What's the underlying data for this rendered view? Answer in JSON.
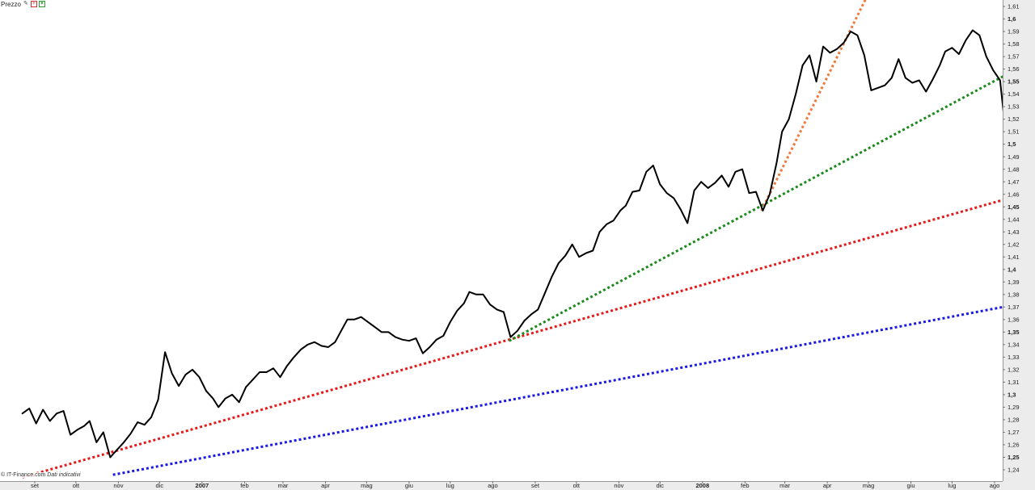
{
  "toolbar": {
    "label": "Prezzo",
    "icons": [
      "pen-icon",
      "plus-icon",
      "arrow-down-icon"
    ]
  },
  "credit": {
    "source": "© IT-Finance.com",
    "note": "Dati indicativi"
  },
  "colors": {
    "price": "#000000",
    "trend_blue": "#1a1ae6",
    "trend_red": "#e61a1a",
    "trend_green": "#1a8a1a",
    "trend_orange": "#f07a3a",
    "axis_bg": "#ececec"
  },
  "chart_data": {
    "type": "line",
    "title": "",
    "xlabel": "",
    "ylabel": "",
    "x_range": [
      "2006-09-01",
      "2008-08-12"
    ],
    "ylim": [
      1.236,
      1.612
    ],
    "y_ticks": [
      "1,24",
      "1,25",
      "1,26",
      "1,27",
      "1,28",
      "1,29",
      "1,3",
      "1,31",
      "1,32",
      "1,33",
      "1,34",
      "1,35",
      "1,36",
      "1,37",
      "1,38",
      "1,39",
      "1,4",
      "1,41",
      "1,42",
      "1,43",
      "1,44",
      "1,45",
      "1,46",
      "1,47",
      "1,48",
      "1,49",
      "1,5",
      "1,51",
      "1,52",
      "1,53",
      "1,54",
      "1,55",
      "1,56",
      "1,57",
      "1,58",
      "1,59",
      "1,6",
      "1,61"
    ],
    "y_ticks_bold": [
      "1,25",
      "1,3",
      "1,35",
      "1,4",
      "1,45",
      "1,5",
      "1,55",
      "1,6"
    ],
    "x_ticks": [
      {
        "date": "2006-09-01",
        "label": "set"
      },
      {
        "date": "2006-10-01",
        "label": "ott"
      },
      {
        "date": "2006-11-01",
        "label": "nov"
      },
      {
        "date": "2006-12-01",
        "label": "dic"
      },
      {
        "date": "2007-01-01",
        "label": "2007",
        "bold": true
      },
      {
        "date": "2007-02-01",
        "label": "feb"
      },
      {
        "date": "2007-03-01",
        "label": "mar"
      },
      {
        "date": "2007-04-01",
        "label": "apr"
      },
      {
        "date": "2007-05-01",
        "label": "mag"
      },
      {
        "date": "2007-06-01",
        "label": "giu"
      },
      {
        "date": "2007-07-01",
        "label": "lug"
      },
      {
        "date": "2007-08-01",
        "label": "ago"
      },
      {
        "date": "2007-09-01",
        "label": "set"
      },
      {
        "date": "2007-10-01",
        "label": "ott"
      },
      {
        "date": "2007-11-01",
        "label": "nov"
      },
      {
        "date": "2007-12-01",
        "label": "dic"
      },
      {
        "date": "2008-01-01",
        "label": "2008",
        "bold": true
      },
      {
        "date": "2008-02-01",
        "label": "feb"
      },
      {
        "date": "2008-03-01",
        "label": "mar"
      },
      {
        "date": "2008-04-01",
        "label": "apr"
      },
      {
        "date": "2008-05-01",
        "label": "mag"
      },
      {
        "date": "2008-06-01",
        "label": "giu"
      },
      {
        "date": "2008-07-01",
        "label": "lug"
      },
      {
        "date": "2008-08-01",
        "label": "ago"
      }
    ],
    "series": [
      {
        "points": [
          [
            "2006-08-23",
            1.285
          ],
          [
            "2006-08-28",
            1.289
          ],
          [
            "2006-09-02",
            1.277
          ],
          [
            "2006-09-07",
            1.288
          ],
          [
            "2006-09-12",
            1.279
          ],
          [
            "2006-09-17",
            1.285
          ],
          [
            "2006-09-22",
            1.287
          ],
          [
            "2006-09-27",
            1.268
          ],
          [
            "2006-10-02",
            1.272
          ],
          [
            "2006-10-07",
            1.275
          ],
          [
            "2006-10-11",
            1.279
          ],
          [
            "2006-10-16",
            1.262
          ],
          [
            "2006-10-21",
            1.27
          ],
          [
            "2006-10-26",
            1.25
          ],
          [
            "2006-10-31",
            1.256
          ],
          [
            "2006-11-05",
            1.262
          ],
          [
            "2006-11-10",
            1.269
          ],
          [
            "2006-11-15",
            1.278
          ],
          [
            "2006-11-20",
            1.276
          ],
          [
            "2006-11-25",
            1.282
          ],
          [
            "2006-11-30",
            1.296
          ],
          [
            "2006-12-05",
            1.334
          ],
          [
            "2006-12-10",
            1.317
          ],
          [
            "2006-12-15",
            1.307
          ],
          [
            "2006-12-20",
            1.316
          ],
          [
            "2006-12-25",
            1.32
          ],
          [
            "2006-12-30",
            1.314
          ],
          [
            "2007-01-04",
            1.303
          ],
          [
            "2007-01-09",
            1.297
          ],
          [
            "2007-01-13",
            1.29
          ],
          [
            "2007-01-18",
            1.297
          ],
          [
            "2007-01-23",
            1.3
          ],
          [
            "2007-01-28",
            1.294
          ],
          [
            "2007-02-02",
            1.306
          ],
          [
            "2007-02-07",
            1.312
          ],
          [
            "2007-02-12",
            1.318
          ],
          [
            "2007-02-17",
            1.318
          ],
          [
            "2007-02-22",
            1.321
          ],
          [
            "2007-02-27",
            1.314
          ],
          [
            "2007-03-04",
            1.323
          ],
          [
            "2007-03-09",
            1.33
          ],
          [
            "2007-03-14",
            1.336
          ],
          [
            "2007-03-19",
            1.34
          ],
          [
            "2007-03-24",
            1.342
          ],
          [
            "2007-03-29",
            1.339
          ],
          [
            "2007-04-03",
            1.338
          ],
          [
            "2007-04-08",
            1.342
          ],
          [
            "2007-04-13",
            1.352
          ],
          [
            "2007-04-17",
            1.36
          ],
          [
            "2007-04-22",
            1.36
          ],
          [
            "2007-04-27",
            1.362
          ],
          [
            "2007-05-02",
            1.358
          ],
          [
            "2007-05-07",
            1.354
          ],
          [
            "2007-05-12",
            1.35
          ],
          [
            "2007-05-17",
            1.35
          ],
          [
            "2007-05-22",
            1.346
          ],
          [
            "2007-05-27",
            1.344
          ],
          [
            "2007-06-01",
            1.343
          ],
          [
            "2007-06-06",
            1.345
          ],
          [
            "2007-06-11",
            1.333
          ],
          [
            "2007-06-16",
            1.338
          ],
          [
            "2007-06-21",
            1.344
          ],
          [
            "2007-06-26",
            1.347
          ],
          [
            "2007-07-01",
            1.358
          ],
          [
            "2007-07-06",
            1.367
          ],
          [
            "2007-07-11",
            1.373
          ],
          [
            "2007-07-15",
            1.382
          ],
          [
            "2007-07-20",
            1.38
          ],
          [
            "2007-07-25",
            1.38
          ],
          [
            "2007-07-30",
            1.372
          ],
          [
            "2007-08-04",
            1.368
          ],
          [
            "2007-08-09",
            1.366
          ],
          [
            "2007-08-14",
            1.346
          ],
          [
            "2007-08-19",
            1.351
          ],
          [
            "2007-08-24",
            1.359
          ],
          [
            "2007-08-29",
            1.364
          ],
          [
            "2007-09-03",
            1.368
          ],
          [
            "2007-09-08",
            1.381
          ],
          [
            "2007-09-13",
            1.394
          ],
          [
            "2007-09-18",
            1.405
          ],
          [
            "2007-09-23",
            1.411
          ],
          [
            "2007-09-28",
            1.42
          ],
          [
            "2007-10-03",
            1.41
          ],
          [
            "2007-10-08",
            1.413
          ],
          [
            "2007-10-13",
            1.415
          ],
          [
            "2007-10-18",
            1.43
          ],
          [
            "2007-10-23",
            1.436
          ],
          [
            "2007-10-28",
            1.439
          ],
          [
            "2007-11-02",
            1.447
          ],
          [
            "2007-11-06",
            1.451
          ],
          [
            "2007-11-11",
            1.462
          ],
          [
            "2007-11-16",
            1.463
          ],
          [
            "2007-11-21",
            1.478
          ],
          [
            "2007-11-26",
            1.483
          ],
          [
            "2007-12-01",
            1.468
          ],
          [
            "2007-12-06",
            1.461
          ],
          [
            "2007-12-11",
            1.457
          ],
          [
            "2007-12-16",
            1.448
          ],
          [
            "2007-12-21",
            1.437
          ],
          [
            "2007-12-26",
            1.463
          ],
          [
            "2007-12-31",
            1.47
          ],
          [
            "2008-01-05",
            1.465
          ],
          [
            "2008-01-10",
            1.469
          ],
          [
            "2008-01-15",
            1.475
          ],
          [
            "2008-01-20",
            1.466
          ],
          [
            "2008-01-25",
            1.478
          ],
          [
            "2008-01-30",
            1.48
          ],
          [
            "2008-02-04",
            1.461
          ],
          [
            "2008-02-09",
            1.462
          ],
          [
            "2008-02-14",
            1.447
          ],
          [
            "2008-02-19",
            1.46
          ],
          [
            "2008-02-24",
            1.485
          ],
          [
            "2008-02-28",
            1.51
          ],
          [
            "2008-03-04",
            1.52
          ],
          [
            "2008-03-09",
            1.54
          ],
          [
            "2008-03-14",
            1.563
          ],
          [
            "2008-03-19",
            1.571
          ],
          [
            "2008-03-24",
            1.55
          ],
          [
            "2008-03-29",
            1.578
          ],
          [
            "2008-04-03",
            1.573
          ],
          [
            "2008-04-08",
            1.576
          ],
          [
            "2008-04-13",
            1.581
          ],
          [
            "2008-04-18",
            1.59
          ],
          [
            "2008-04-23",
            1.587
          ],
          [
            "2008-04-28",
            1.571
          ],
          [
            "2008-05-03",
            1.543
          ],
          [
            "2008-05-08",
            1.545
          ],
          [
            "2008-05-13",
            1.547
          ],
          [
            "2008-05-18",
            1.553
          ],
          [
            "2008-05-23",
            1.568
          ],
          [
            "2008-05-28",
            1.553
          ],
          [
            "2008-06-02",
            1.549
          ],
          [
            "2008-06-07",
            1.551
          ],
          [
            "2008-06-12",
            1.542
          ],
          [
            "2008-06-17",
            1.552
          ],
          [
            "2008-06-22",
            1.563
          ],
          [
            "2008-06-26",
            1.574
          ],
          [
            "2008-07-01",
            1.577
          ],
          [
            "2008-07-06",
            1.572
          ],
          [
            "2008-07-11",
            1.583
          ],
          [
            "2008-07-16",
            1.591
          ],
          [
            "2008-07-21",
            1.587
          ],
          [
            "2008-07-26",
            1.57
          ],
          [
            "2008-07-31",
            1.559
          ],
          [
            "2008-08-05",
            1.551
          ],
          [
            "2008-08-10",
            1.5
          ]
        ]
      }
    ],
    "trendlines": [
      {
        "color_key": "trend_red",
        "from": [
          "2006-08-23",
          1.234
        ],
        "to": [
          "2008-08-12",
          1.457
        ]
      },
      {
        "color_key": "trend_blue",
        "from": [
          "2006-10-28",
          1.236
        ],
        "to": [
          "2008-08-12",
          1.371
        ]
      },
      {
        "color_key": "trend_green",
        "from": [
          "2007-08-13",
          1.343
        ],
        "to": [
          "2008-08-12",
          1.557
        ]
      },
      {
        "color_key": "trend_orange",
        "from": [
          "2008-02-13",
          1.447
        ],
        "to": [
          "2008-04-29",
          1.616
        ]
      }
    ]
  }
}
